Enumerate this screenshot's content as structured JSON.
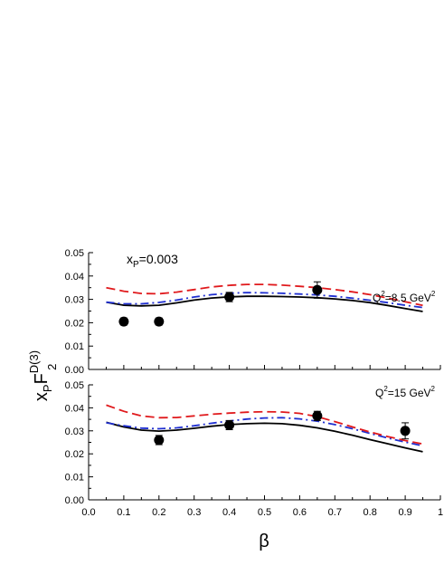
{
  "chart_data": [
    {
      "type": "line",
      "panel": "top",
      "annotations": {
        "xp_main": "x",
        "xp_sub": "P",
        "xp_value": "=0.003",
        "q2_main": "Q",
        "q2_sup": "2",
        "q2_value": "=8.5 GeV",
        "q2_unit_sup": "2"
      },
      "xlim": [
        0.0,
        1.0
      ],
      "ylim": [
        0.0,
        0.05
      ],
      "y_ticks": [
        "0.00",
        "0.01",
        "0.02",
        "0.03",
        "0.04",
        "0.05"
      ],
      "points": {
        "x": [
          0.1,
          0.2,
          0.4,
          0.65
        ],
        "y": [
          0.0205,
          0.0205,
          0.031,
          0.034
        ],
        "yerr": [
          0.0015,
          0.0015,
          0.002,
          0.0035
        ]
      },
      "series": [
        {
          "style": "solid",
          "color": "#000000",
          "x": [
            0.05,
            0.1,
            0.15,
            0.2,
            0.25,
            0.3,
            0.35,
            0.4,
            0.45,
            0.5,
            0.55,
            0.6,
            0.65,
            0.7,
            0.75,
            0.8,
            0.85,
            0.9,
            0.95
          ],
          "y": [
            0.0288,
            0.0275,
            0.0272,
            0.0275,
            0.0285,
            0.0297,
            0.0306,
            0.0311,
            0.0313,
            0.0313,
            0.0312,
            0.031,
            0.0307,
            0.0302,
            0.0295,
            0.0286,
            0.0274,
            0.0261,
            0.0248
          ]
        },
        {
          "style": "dashdot",
          "color": "#1f2fd0",
          "x": [
            0.05,
            0.1,
            0.15,
            0.2,
            0.25,
            0.3,
            0.35,
            0.4,
            0.45,
            0.5,
            0.55,
            0.6,
            0.65,
            0.7,
            0.75,
            0.8,
            0.85,
            0.9,
            0.95
          ],
          "y": [
            0.0288,
            0.0281,
            0.0281,
            0.0287,
            0.0297,
            0.031,
            0.032,
            0.0326,
            0.0329,
            0.0328,
            0.0326,
            0.0323,
            0.0319,
            0.0313,
            0.0305,
            0.0296,
            0.0286,
            0.0275,
            0.0265
          ]
        },
        {
          "style": "dashed",
          "color": "#e0191c",
          "x": [
            0.05,
            0.1,
            0.15,
            0.2,
            0.25,
            0.3,
            0.35,
            0.4,
            0.45,
            0.5,
            0.55,
            0.6,
            0.65,
            0.7,
            0.75,
            0.8,
            0.85,
            0.9,
            0.95
          ],
          "y": [
            0.035,
            0.0335,
            0.0325,
            0.0324,
            0.0331,
            0.0342,
            0.0353,
            0.036,
            0.0364,
            0.0364,
            0.0361,
            0.0356,
            0.035,
            0.0342,
            0.0332,
            0.032,
            0.0306,
            0.029,
            0.0274
          ]
        }
      ]
    },
    {
      "type": "line",
      "panel": "bottom",
      "annotations": {
        "q2_main": "Q",
        "q2_sup": "2",
        "q2_value": "=15 GeV",
        "q2_unit_sup": "2"
      },
      "xlim": [
        0.0,
        1.0
      ],
      "ylim": [
        0.0,
        0.05
      ],
      "y_ticks": [
        "0.00",
        "0.01",
        "0.02",
        "0.03",
        "0.04",
        "0.05"
      ],
      "x_ticks": [
        "0.0",
        "0.1",
        "0.2",
        "0.3",
        "0.4",
        "0.5",
        "0.6",
        "0.7",
        "0.8",
        "0.9",
        "1"
      ],
      "points": {
        "x": [
          0.2,
          0.4,
          0.65,
          0.9
        ],
        "y": [
          0.026,
          0.0325,
          0.0365,
          0.03
        ],
        "yerr": [
          0.002,
          0.002,
          0.002,
          0.0035
        ]
      },
      "series": [
        {
          "style": "solid",
          "color": "#000000",
          "x": [
            0.05,
            0.1,
            0.15,
            0.2,
            0.25,
            0.3,
            0.35,
            0.4,
            0.45,
            0.5,
            0.55,
            0.6,
            0.65,
            0.7,
            0.75,
            0.8,
            0.85,
            0.9,
            0.95
          ],
          "y": [
            0.0337,
            0.0317,
            0.0303,
            0.0299,
            0.0303,
            0.0311,
            0.032,
            0.0327,
            0.0331,
            0.0333,
            0.0331,
            0.0324,
            0.0313,
            0.0298,
            0.0281,
            0.0262,
            0.0244,
            0.0226,
            0.0209
          ]
        },
        {
          "style": "dashdot",
          "color": "#1f2fd0",
          "x": [
            0.05,
            0.1,
            0.15,
            0.2,
            0.25,
            0.3,
            0.35,
            0.4,
            0.45,
            0.5,
            0.55,
            0.6,
            0.65,
            0.7,
            0.75,
            0.8,
            0.85,
            0.9,
            0.95
          ],
          "y": [
            0.0335,
            0.0322,
            0.0312,
            0.0309,
            0.0313,
            0.0322,
            0.0333,
            0.0343,
            0.0351,
            0.0356,
            0.0357,
            0.0352,
            0.0342,
            0.0327,
            0.0309,
            0.0289,
            0.0269,
            0.0251,
            0.0235
          ]
        },
        {
          "style": "dashed",
          "color": "#e0191c",
          "x": [
            0.05,
            0.1,
            0.15,
            0.2,
            0.25,
            0.3,
            0.35,
            0.4,
            0.45,
            0.5,
            0.55,
            0.6,
            0.65,
            0.7,
            0.75,
            0.8,
            0.85,
            0.9,
            0.95
          ],
          "y": [
            0.0412,
            0.0385,
            0.0365,
            0.0357,
            0.0358,
            0.0365,
            0.0372,
            0.0377,
            0.0381,
            0.0383,
            0.0382,
            0.0376,
            0.0362,
            0.034,
            0.0317,
            0.0295,
            0.0275,
            0.0258,
            0.0243
          ]
        }
      ]
    }
  ],
  "axes": {
    "ylabel_main": "x",
    "ylabel_sub": "P",
    "ylabel_F": "F",
    "ylabel_sup": "D(3)",
    "ylabel_sub2": "2",
    "xlabel": "β"
  }
}
